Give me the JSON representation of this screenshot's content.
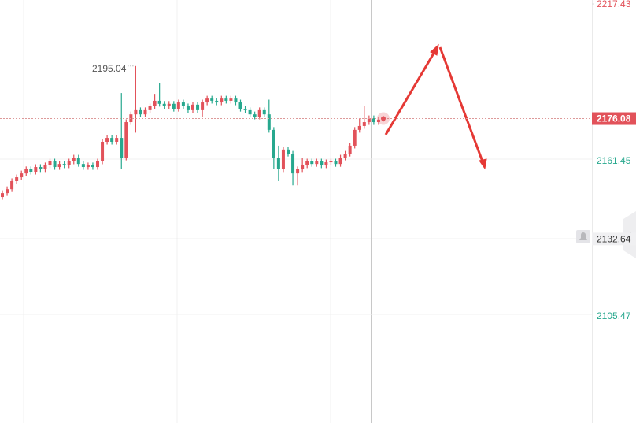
{
  "chart_data": {
    "type": "candlestick",
    "ohlc": [
      [
        2147.8,
        2150.2,
        2146.8,
        2149.2
      ],
      [
        2149.2,
        2151.6,
        2148.2,
        2150.6
      ],
      [
        2150.6,
        2154.5,
        2149.6,
        2153.5
      ],
      [
        2153.5,
        2155.9,
        2152.5,
        2154.9
      ],
      [
        2154.9,
        2157.3,
        2153.9,
        2156.3
      ],
      [
        2156.3,
        2158.8,
        2155.3,
        2157.8
      ],
      [
        2157.8,
        2158.8,
        2155.9,
        2156.9
      ],
      [
        2156.9,
        2159.6,
        2155.9,
        2158.6
      ],
      [
        2158.6,
        2159.6,
        2156.8,
        2157.8
      ],
      [
        2157.8,
        2160.2,
        2156.8,
        2159.2
      ],
      [
        2159.2,
        2161.6,
        2158.2,
        2160.6
      ],
      [
        2160.6,
        2161.6,
        2157.6,
        2158.6
      ],
      [
        2158.6,
        2160.7,
        2157.6,
        2159.7
      ],
      [
        2159.7,
        2160.7,
        2158.2,
        2159.2
      ],
      [
        2159.2,
        2161.6,
        2158.2,
        2160.6
      ],
      [
        2160.6,
        2163.0,
        2159.6,
        2162.0
      ],
      [
        2162.0,
        2163.0,
        2158.7,
        2159.7
      ],
      [
        2159.7,
        2160.7,
        2157.6,
        2158.6
      ],
      [
        2158.6,
        2160.2,
        2157.6,
        2159.2
      ],
      [
        2159.2,
        2160.2,
        2157.6,
        2158.6
      ],
      [
        2158.6,
        2161.6,
        2157.6,
        2160.6
      ],
      [
        2160.6,
        2168.7,
        2159.6,
        2167.7
      ],
      [
        2167.7,
        2170.1,
        2166.7,
        2169.1
      ],
      [
        2169.1,
        2170.1,
        2166.7,
        2167.7
      ],
      [
        2167.7,
        2170.1,
        2166.7,
        2169.1
      ],
      [
        2169.1,
        2185.3,
        2157.8,
        2162.0
      ],
      [
        2162.0,
        2175.8,
        2161.0,
        2174.8
      ],
      [
        2174.8,
        2178.6,
        2173.8,
        2177.6
      ],
      [
        2177.6,
        2195.04,
        2171.0,
        2179.1
      ],
      [
        2179.1,
        2180.1,
        2176.6,
        2177.6
      ],
      [
        2177.6,
        2180.1,
        2176.6,
        2179.1
      ],
      [
        2179.1,
        2181.5,
        2178.1,
        2180.5
      ],
      [
        2180.5,
        2185.0,
        2179.5,
        2182.5
      ],
      [
        2182.5,
        2189.0,
        2180.4,
        2181.4
      ],
      [
        2181.4,
        2182.4,
        2179.5,
        2180.5
      ],
      [
        2180.5,
        2182.4,
        2179.5,
        2181.4
      ],
      [
        2181.4,
        2182.4,
        2178.6,
        2179.6
      ],
      [
        2179.6,
        2182.9,
        2178.6,
        2181.9
      ],
      [
        2181.9,
        2182.9,
        2179.5,
        2180.5
      ],
      [
        2180.5,
        2181.5,
        2178.1,
        2179.1
      ],
      [
        2179.1,
        2182.1,
        2178.1,
        2181.1
      ],
      [
        2181.1,
        2182.1,
        2178.1,
        2179.1
      ],
      [
        2179.1,
        2182.9,
        2176.5,
        2181.9
      ],
      [
        2181.9,
        2184.3,
        2180.9,
        2183.3
      ],
      [
        2183.3,
        2184.3,
        2181.5,
        2182.5
      ],
      [
        2182.5,
        2183.5,
        2180.9,
        2181.9
      ],
      [
        2181.9,
        2184.3,
        2180.9,
        2183.3
      ],
      [
        2183.3,
        2184.3,
        2181.5,
        2182.5
      ],
      [
        2182.5,
        2184.3,
        2181.5,
        2183.3
      ],
      [
        2183.3,
        2184.3,
        2180.9,
        2181.9
      ],
      [
        2181.9,
        2182.9,
        2178.6,
        2179.6
      ],
      [
        2179.6,
        2180.6,
        2178.1,
        2179.1
      ],
      [
        2179.1,
        2180.1,
        2176.6,
        2177.6
      ],
      [
        2177.6,
        2178.6,
        2175.8,
        2176.8
      ],
      [
        2176.8,
        2180.1,
        2175.8,
        2179.1
      ],
      [
        2179.1,
        2180.1,
        2176.6,
        2177.6
      ],
      [
        2177.6,
        2182.9,
        2171.0,
        2172.0
      ],
      [
        2172.0,
        2173.0,
        2157.8,
        2162.0
      ],
      [
        2162.0,
        2166.3,
        2153.5,
        2157.8
      ],
      [
        2157.8,
        2165.9,
        2156.8,
        2164.9
      ],
      [
        2164.9,
        2165.9,
        2162.4,
        2163.4
      ],
      [
        2163.4,
        2164.4,
        2152.0,
        2156.3
      ],
      [
        2156.3,
        2158.8,
        2152.0,
        2157.8
      ],
      [
        2157.8,
        2162.0,
        2156.8,
        2159.2
      ],
      [
        2159.2,
        2161.6,
        2158.2,
        2160.6
      ],
      [
        2160.6,
        2161.6,
        2158.7,
        2159.7
      ],
      [
        2159.7,
        2161.6,
        2158.7,
        2160.6
      ],
      [
        2160.6,
        2161.6,
        2158.2,
        2159.2
      ],
      [
        2159.2,
        2161.3,
        2158.2,
        2160.3
      ],
      [
        2160.3,
        2161.6,
        2159.3,
        2160.6
      ],
      [
        2160.6,
        2161.6,
        2158.7,
        2159.7
      ],
      [
        2159.7,
        2163.0,
        2158.7,
        2162.0
      ],
      [
        2162.0,
        2164.4,
        2161.0,
        2163.4
      ],
      [
        2163.4,
        2167.3,
        2162.4,
        2166.3
      ],
      [
        2166.3,
        2173.0,
        2165.3,
        2172.0
      ],
      [
        2172.0,
        2176.0,
        2171.0,
        2173.4
      ],
      [
        2173.4,
        2180.5,
        2172.4,
        2174.8
      ],
      [
        2174.8,
        2177.2,
        2173.8,
        2176.2
      ],
      [
        2176.2,
        2177.2,
        2173.8,
        2174.8
      ],
      [
        2174.8,
        2176.7,
        2173.8,
        2175.7
      ],
      [
        2175.7,
        2177.0,
        2175.0,
        2176.08
      ]
    ],
    "up_color": "#e2525a",
    "down_color": "#27a88e",
    "ylim": [
      2066.24,
      2218.86
    ],
    "yticks": [
      2105.47,
      2161.45
    ],
    "grid": true,
    "top_price": 2217.43,
    "crosshair_price": 2132.64
  }
}
